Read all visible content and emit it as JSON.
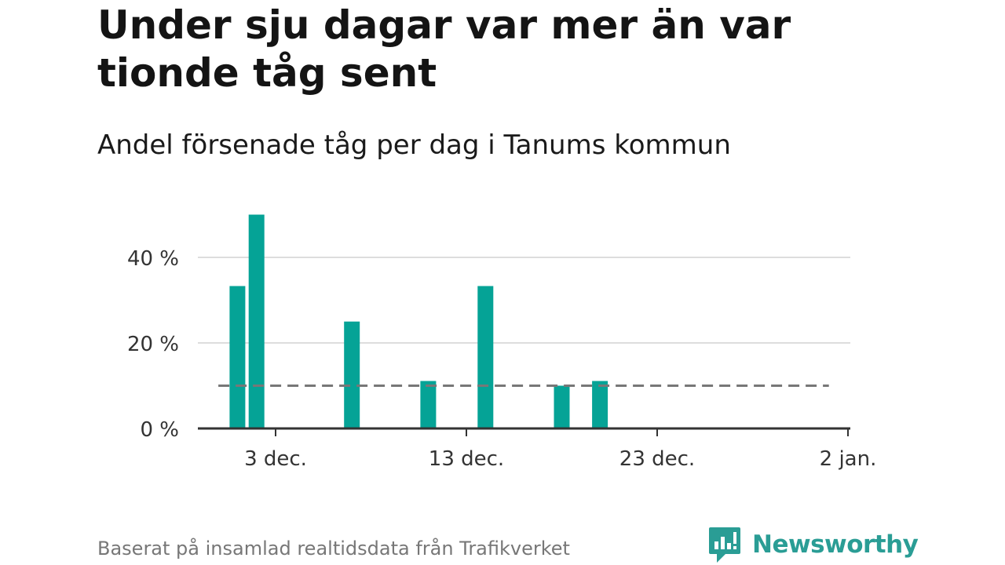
{
  "header": {
    "title": "Under sju dagar var mer än var tionde tåg sent",
    "subtitle": "Andel försenade tåg per dag i Tanums kommun"
  },
  "footer": {
    "source": "Baserat på insamlad realtidsdata från Trafikverket"
  },
  "brand": {
    "name": "Newsworthy",
    "color": "#2a9d95",
    "icon": "newsworthy-logo-icon"
  },
  "chart_data": {
    "type": "bar",
    "title": "Under sju dagar var mer än var tionde tåg sent",
    "subtitle": "Andel försenade tåg per dag i Tanums kommun",
    "xlabel": "",
    "ylabel": "",
    "x_unit": "day",
    "x_range": [
      "2023-11-29",
      "2024-01-02"
    ],
    "x_ticks": [
      {
        "date": "2023-12-03",
        "label": "3 dec."
      },
      {
        "date": "2023-12-13",
        "label": "13 dec."
      },
      {
        "date": "2023-12-23",
        "label": "23 dec."
      },
      {
        "date": "2024-01-02",
        "label": "2 jan."
      }
    ],
    "ylim": [
      0,
      50
    ],
    "y_ticks": [
      {
        "value": 0,
        "label": "0 %"
      },
      {
        "value": 20,
        "label": "20 %"
      },
      {
        "value": 40,
        "label": "40 %"
      }
    ],
    "grid": true,
    "bar_color": "#05a396",
    "reference_line": {
      "value": 10,
      "style": "dashed",
      "color": "#777777",
      "x_from": "2023-11-30",
      "x_to": "2024-01-01"
    },
    "series": [
      {
        "points": [
          {
            "date": "2023-12-01",
            "value": 33.3
          },
          {
            "date": "2023-12-02",
            "value": 50
          },
          {
            "date": "2023-12-07",
            "value": 25
          },
          {
            "date": "2023-12-11",
            "value": 11.1
          },
          {
            "date": "2023-12-14",
            "value": 33.3
          },
          {
            "date": "2023-12-18",
            "value": 10
          },
          {
            "date": "2023-12-20",
            "value": 11.1
          }
        ]
      }
    ]
  }
}
